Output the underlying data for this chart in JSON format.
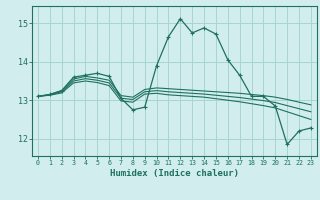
{
  "xlabel": "Humidex (Indice chaleur)",
  "xlim": [
    -0.5,
    23.5
  ],
  "ylim": [
    11.55,
    15.45
  ],
  "yticks": [
    12,
    13,
    14,
    15
  ],
  "xticks": [
    0,
    1,
    2,
    3,
    4,
    5,
    6,
    7,
    8,
    9,
    10,
    11,
    12,
    13,
    14,
    15,
    16,
    17,
    18,
    19,
    20,
    21,
    22,
    23
  ],
  "bg_color": "#d1eded",
  "grid_color": "#a8d4d4",
  "line_color": "#1e7060",
  "series1": [
    13.1,
    13.15,
    13.25,
    13.6,
    13.65,
    13.7,
    13.62,
    13.05,
    12.75,
    12.82,
    13.9,
    14.65,
    15.12,
    14.75,
    14.88,
    14.72,
    14.05,
    13.65,
    13.1,
    13.1,
    12.85,
    11.85,
    12.2,
    12.28
  ],
  "series2": [
    13.1,
    13.15,
    13.25,
    13.55,
    13.62,
    13.58,
    13.52,
    13.12,
    13.08,
    13.28,
    13.32,
    13.3,
    13.28,
    13.26,
    13.24,
    13.22,
    13.2,
    13.18,
    13.15,
    13.12,
    13.08,
    13.02,
    12.95,
    12.88
  ],
  "series3": [
    13.1,
    13.14,
    13.22,
    13.5,
    13.56,
    13.52,
    13.45,
    13.05,
    13.02,
    13.22,
    13.25,
    13.22,
    13.2,
    13.18,
    13.16,
    13.13,
    13.1,
    13.07,
    13.03,
    12.99,
    12.94,
    12.86,
    12.78,
    12.7
  ],
  "series4": [
    13.1,
    13.13,
    13.19,
    13.45,
    13.5,
    13.46,
    13.38,
    12.98,
    12.95,
    13.16,
    13.18,
    13.14,
    13.12,
    13.1,
    13.08,
    13.04,
    13.0,
    12.96,
    12.91,
    12.86,
    12.8,
    12.7,
    12.6,
    12.5
  ]
}
